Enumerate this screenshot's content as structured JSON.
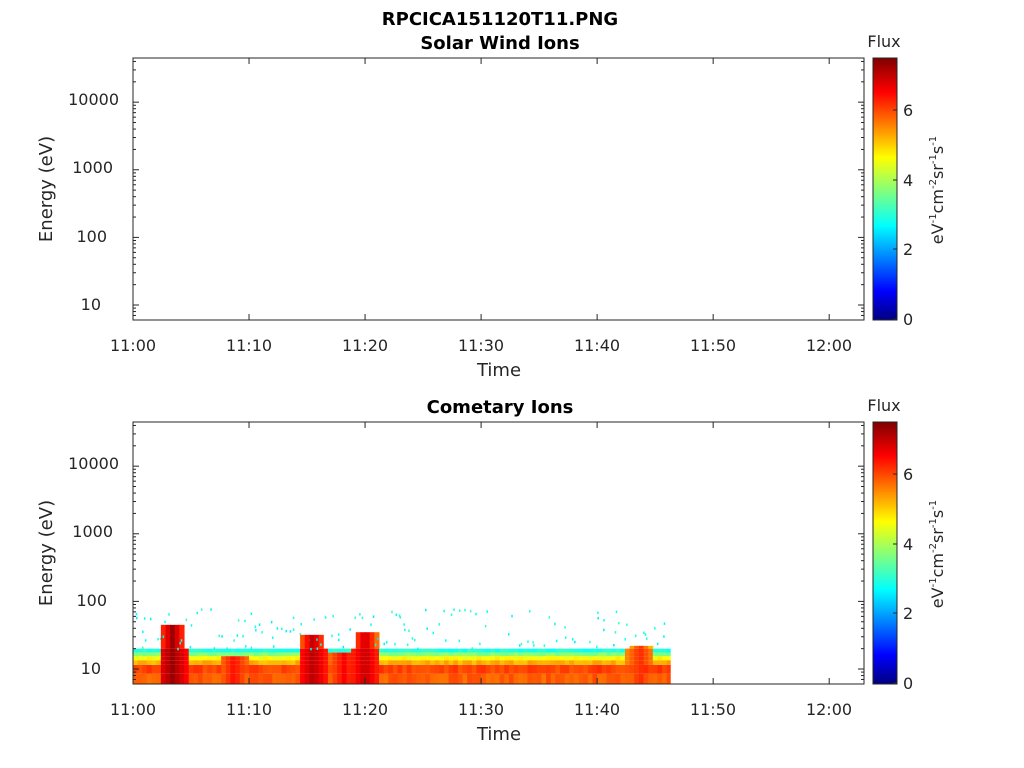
{
  "figure_title": "RPCICA151120T11.PNG",
  "chart_data": [
    {
      "type": "heatmap",
      "title": "Solar Wind Ions",
      "xlabel": "Time",
      "ylabel": "Energy (eV)",
      "yscale": "log",
      "ylim": [
        6,
        45000
      ],
      "xlim_minutes": [
        0,
        63
      ],
      "xtick_labels": [
        "11:00",
        "11:10",
        "11:20",
        "11:30",
        "11:40",
        "11:50",
        "12:00"
      ],
      "ytick_labels": [
        "10",
        "100",
        "1000",
        "10000"
      ],
      "colorbar": {
        "label": "Flux",
        "unit": "eV-1cm-2sr-1s-1",
        "range": [
          0,
          7.4
        ],
        "tick_labels": [
          "0",
          "2",
          "4",
          "6"
        ],
        "colormap": "jet"
      },
      "data_extent": "no data",
      "features": []
    },
    {
      "type": "heatmap",
      "title": "Cometary Ions",
      "xlabel": "Time",
      "ylabel": "Energy (eV)",
      "yscale": "log",
      "ylim": [
        6,
        45000
      ],
      "xlim_minutes": [
        0,
        63
      ],
      "xtick_labels": [
        "11:00",
        "11:10",
        "11:20",
        "11:30",
        "11:40",
        "11:50",
        "12:00"
      ],
      "ytick_labels": [
        "10",
        "100",
        "1000",
        "10000"
      ],
      "colorbar": {
        "label": "Flux",
        "unit": "eV-1cm-2sr-1s-1",
        "range": [
          0,
          7.4
        ],
        "tick_labels": [
          "0",
          "2",
          "4",
          "6"
        ],
        "colormap": "jet"
      },
      "data_extent": {
        "time_minutes": [
          0,
          46.3
        ],
        "energy_eV": [
          6,
          80
        ]
      },
      "bands": [
        {
          "energy_eV": [
            6,
            8.5
          ],
          "flux": 5.8
        },
        {
          "energy_eV": [
            8.5,
            11.5
          ],
          "flux": 6.0
        },
        {
          "energy_eV": [
            11.5,
            13.5
          ],
          "flux": 5.2
        },
        {
          "energy_eV": [
            13.5,
            15.5
          ],
          "flux": 4.6
        },
        {
          "energy_eV": [
            15.5,
            17.5
          ],
          "flux": 3.8
        },
        {
          "energy_eV": [
            17.5,
            20
          ],
          "flux": 3.0
        }
      ],
      "features": [
        {
          "time_minutes": 3.2,
          "peak_energy_eV": 45,
          "flux": 7.2
        },
        {
          "time_minutes": 15.3,
          "peak_energy_eV": 32,
          "flux": 7.0
        },
        {
          "time_minutes": 19.8,
          "peak_energy_eV": 35,
          "flux": 6.9
        },
        {
          "time_minutes": 18.0,
          "peak_energy_eV": 16,
          "flux": 6.5
        },
        {
          "time_minutes": 8.5,
          "peak_energy_eV": 14,
          "flux": 6.4
        },
        {
          "time_minutes": 43.5,
          "peak_energy_eV": 22,
          "flux": 6.2
        }
      ]
    }
  ]
}
